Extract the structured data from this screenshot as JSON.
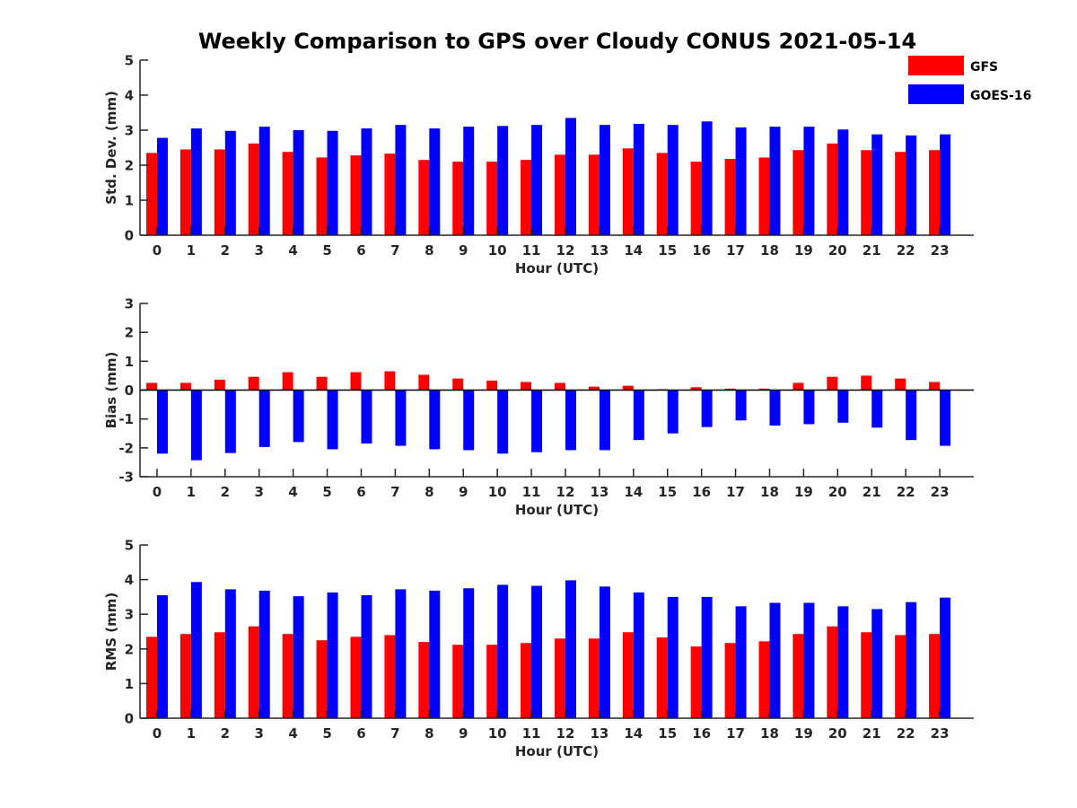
{
  "title": "Weekly Comparison to GPS over Cloudy CONUS 2021-05-14",
  "legend": [
    {
      "name": "GFS",
      "color": "#ff0000"
    },
    {
      "name": "GOES-16",
      "color": "#0000ff"
    }
  ],
  "chart_data": [
    {
      "type": "bar",
      "xlabel": "Hour (UTC)",
      "ylabel": "Std. Dev. (mm)",
      "ylim": [
        0,
        5
      ],
      "yticks": [
        0,
        1,
        2,
        3,
        4,
        5
      ],
      "categories": [
        "0",
        "1",
        "2",
        "3",
        "4",
        "5",
        "6",
        "7",
        "8",
        "9",
        "10",
        "11",
        "12",
        "13",
        "14",
        "15",
        "16",
        "17",
        "18",
        "19",
        "20",
        "21",
        "22",
        "23"
      ],
      "series": [
        {
          "name": "GFS",
          "color": "#ff0000",
          "values": [
            2.35,
            2.45,
            2.45,
            2.62,
            2.38,
            2.22,
            2.28,
            2.33,
            2.15,
            2.1,
            2.1,
            2.15,
            2.3,
            2.3,
            2.48,
            2.35,
            2.1,
            2.18,
            2.22,
            2.43,
            2.62,
            2.43,
            2.38,
            2.43
          ]
        },
        {
          "name": "GOES-16",
          "color": "#0000ff",
          "values": [
            2.78,
            3.05,
            2.98,
            3.1,
            3.0,
            2.98,
            3.05,
            3.15,
            3.05,
            3.1,
            3.12,
            3.15,
            3.35,
            3.15,
            3.18,
            3.15,
            3.25,
            3.08,
            3.1,
            3.1,
            3.02,
            2.88,
            2.85,
            2.88
          ]
        }
      ],
      "legend": "top-right"
    },
    {
      "type": "bar",
      "xlabel": "Hour (UTC)",
      "ylabel": "Bias (mm)",
      "ylim": [
        -3,
        3
      ],
      "yticks": [
        -3,
        -2,
        -1,
        0,
        1,
        2,
        3
      ],
      "categories": [
        "0",
        "1",
        "2",
        "3",
        "4",
        "5",
        "6",
        "7",
        "8",
        "9",
        "10",
        "11",
        "12",
        "13",
        "14",
        "15",
        "16",
        "17",
        "18",
        "19",
        "20",
        "21",
        "22",
        "23"
      ],
      "series": [
        {
          "name": "GFS",
          "color": "#ff0000",
          "values": [
            0.25,
            0.25,
            0.36,
            0.46,
            0.62,
            0.46,
            0.62,
            0.65,
            0.53,
            0.4,
            0.33,
            0.28,
            0.25,
            0.12,
            0.15,
            0.03,
            0.1,
            0.05,
            0.05,
            0.25,
            0.46,
            0.5,
            0.4,
            0.28
          ]
        },
        {
          "name": "GOES-16",
          "color": "#0000ff",
          "values": [
            -2.2,
            -2.43,
            -2.18,
            -1.97,
            -1.8,
            -2.05,
            -1.85,
            -1.93,
            -2.05,
            -2.08,
            -2.2,
            -2.15,
            -2.08,
            -2.08,
            -1.73,
            -1.5,
            -1.28,
            -1.05,
            -1.23,
            -1.18,
            -1.13,
            -1.3,
            -1.73,
            -1.93
          ]
        }
      ]
    },
    {
      "type": "bar",
      "xlabel": "Hour (UTC)",
      "ylabel": "RMS (mm)",
      "ylim": [
        0,
        5
      ],
      "yticks": [
        0,
        1,
        2,
        3,
        4,
        5
      ],
      "categories": [
        "0",
        "1",
        "2",
        "3",
        "4",
        "5",
        "6",
        "7",
        "8",
        "9",
        "10",
        "11",
        "12",
        "13",
        "14",
        "15",
        "16",
        "17",
        "18",
        "19",
        "20",
        "21",
        "22",
        "23"
      ],
      "series": [
        {
          "name": "GFS",
          "color": "#ff0000",
          "values": [
            2.35,
            2.43,
            2.48,
            2.65,
            2.43,
            2.25,
            2.35,
            2.4,
            2.2,
            2.12,
            2.12,
            2.17,
            2.3,
            2.3,
            2.48,
            2.33,
            2.07,
            2.17,
            2.22,
            2.43,
            2.65,
            2.48,
            2.4,
            2.43
          ]
        },
        {
          "name": "GOES-16",
          "color": "#0000ff",
          "values": [
            3.55,
            3.93,
            3.72,
            3.68,
            3.52,
            3.63,
            3.55,
            3.72,
            3.68,
            3.75,
            3.85,
            3.82,
            3.98,
            3.8,
            3.63,
            3.5,
            3.5,
            3.23,
            3.33,
            3.33,
            3.23,
            3.15,
            3.35,
            3.48
          ]
        }
      ]
    }
  ]
}
